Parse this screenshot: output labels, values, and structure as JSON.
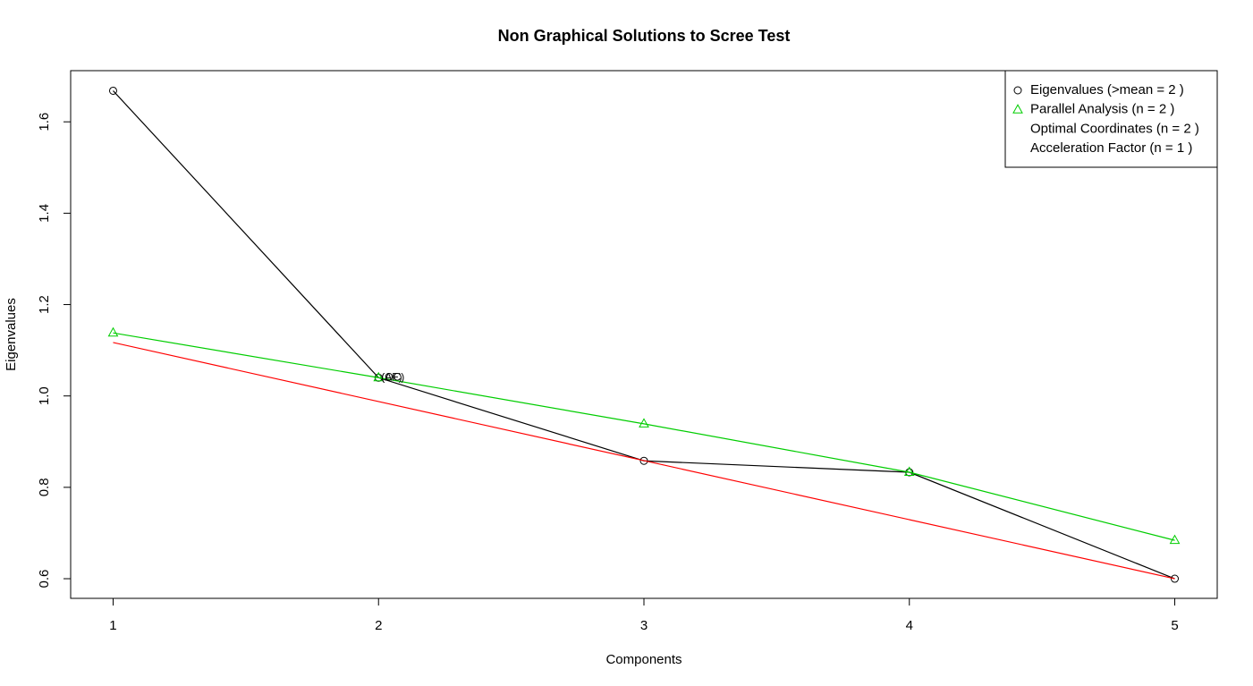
{
  "chart_data": {
    "type": "line",
    "title": "Non Graphical Solutions to Scree Test",
    "x_label": "Components",
    "y_label": "Eigenvalues",
    "xlim": [
      0.84,
      5.16
    ],
    "ylim": [
      0.557,
      1.712
    ],
    "xticks": [
      1,
      2,
      3,
      4,
      5
    ],
    "yticks": [
      0.6,
      0.8,
      {
        "value": 1.0,
        "label": "1.0"
      },
      1.2,
      1.4,
      1.6
    ],
    "series": [
      {
        "color": "#000000",
        "marker": "circle",
        "x": [
          1,
          2,
          3,
          4,
          5
        ],
        "values": [
          1.668,
          1.04,
          0.858,
          0.833,
          0.6
        ]
      },
      {
        "color": "#00cd00",
        "marker": "triangle",
        "x": [
          1,
          2,
          3,
          4,
          5
        ],
        "values": [
          1.138,
          1.04,
          0.939,
          0.833,
          0.684
        ]
      },
      {
        "color": "#ff0000",
        "marker": "none",
        "x": [
          1,
          5
        ],
        "values": [
          1.117,
          0.6
        ]
      }
    ],
    "annotations": [
      {
        "text": "(OC)",
        "color": "#ff0000",
        "x": 2,
        "y": 1.04
      },
      {
        "text": "(AF)",
        "color": "#0000ff",
        "x": 2,
        "y": 1.04
      }
    ],
    "legend_position": "topright",
    "legend": [
      {
        "text": "Eigenvalues (>mean  =  2 )",
        "color": "#000000",
        "marker": "circle"
      },
      {
        "text": "Parallel Analysis (n =  2 )",
        "color": "#00cd00",
        "marker": "triangle"
      },
      {
        "text": "Optimal Coordinates (n =  2 )",
        "color": "#ff0000",
        "marker": "none"
      },
      {
        "text": "Acceleration Factor (n =  1 )",
        "color": "#0000ff",
        "marker": "none"
      }
    ]
  }
}
